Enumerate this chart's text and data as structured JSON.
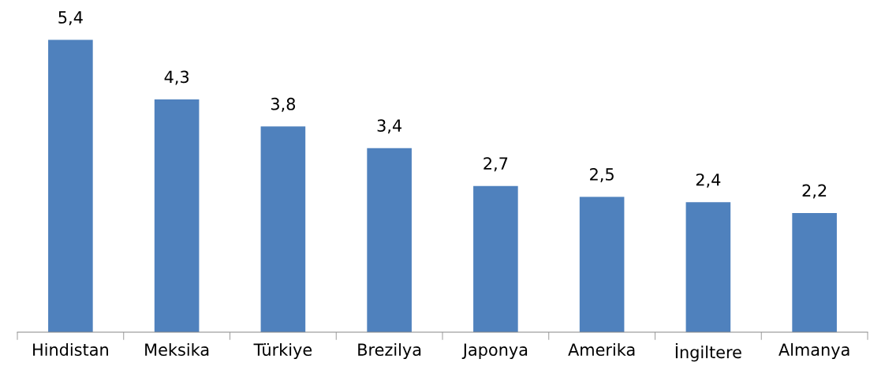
{
  "chart_data": {
    "type": "bar",
    "categories": [
      "Hindistan",
      "Meksika",
      "Türkiye",
      "Brezilya",
      "Japonya",
      "Amerika",
      "İngiltere",
      "Almanya"
    ],
    "values": [
      5.4,
      4.3,
      3.8,
      3.4,
      2.7,
      2.5,
      2.4,
      2.2
    ],
    "value_labels": [
      "5,4",
      "4,3",
      "3,8",
      "3,4",
      "2,7",
      "2,5",
      "2,4",
      "2,2"
    ],
    "color": "#4f81bd",
    "grid": false,
    "legend": false,
    "tick_labels": "x"
  }
}
